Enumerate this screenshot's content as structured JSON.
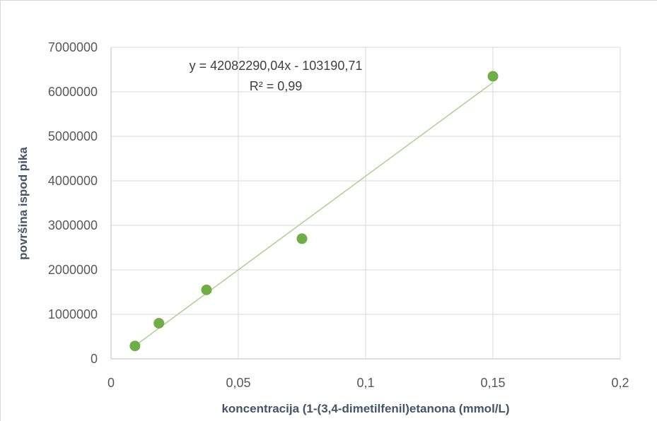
{
  "chart_data": {
    "type": "scatter",
    "title": "",
    "xlabel": "koncentracija (1-(3,4-dimetilfenil)etanona (mmol/L)",
    "ylabel": "površina ispod pika",
    "xlim": [
      0,
      0.2
    ],
    "ylim": [
      0,
      7000000
    ],
    "x_ticks": [
      "0",
      "0,05",
      "0,1",
      "0,15",
      "0,2"
    ],
    "x_tick_values": [
      0,
      0.05,
      0.1,
      0.15,
      0.2
    ],
    "y_ticks": [
      "0",
      "1000000",
      "2000000",
      "3000000",
      "4000000",
      "5000000",
      "6000000",
      "7000000"
    ],
    "y_tick_values": [
      0,
      1000000,
      2000000,
      3000000,
      4000000,
      5000000,
      6000000,
      7000000
    ],
    "grid": true,
    "series": [
      {
        "x": [
          0.0094,
          0.0188,
          0.0375,
          0.075,
          0.15
        ],
        "y": [
          290000,
          800000,
          1550000,
          2700000,
          6350000
        ],
        "color": "#70ad47"
      }
    ],
    "trendline": {
      "type": "linear",
      "slope": 42082290.04,
      "intercept": -103190.71,
      "color": "#a9d18e",
      "x_range": [
        0.0094,
        0.15
      ],
      "equation_label": "y = 42082290,04x - 103190,71",
      "r2_label": "R² = 0,99"
    }
  }
}
